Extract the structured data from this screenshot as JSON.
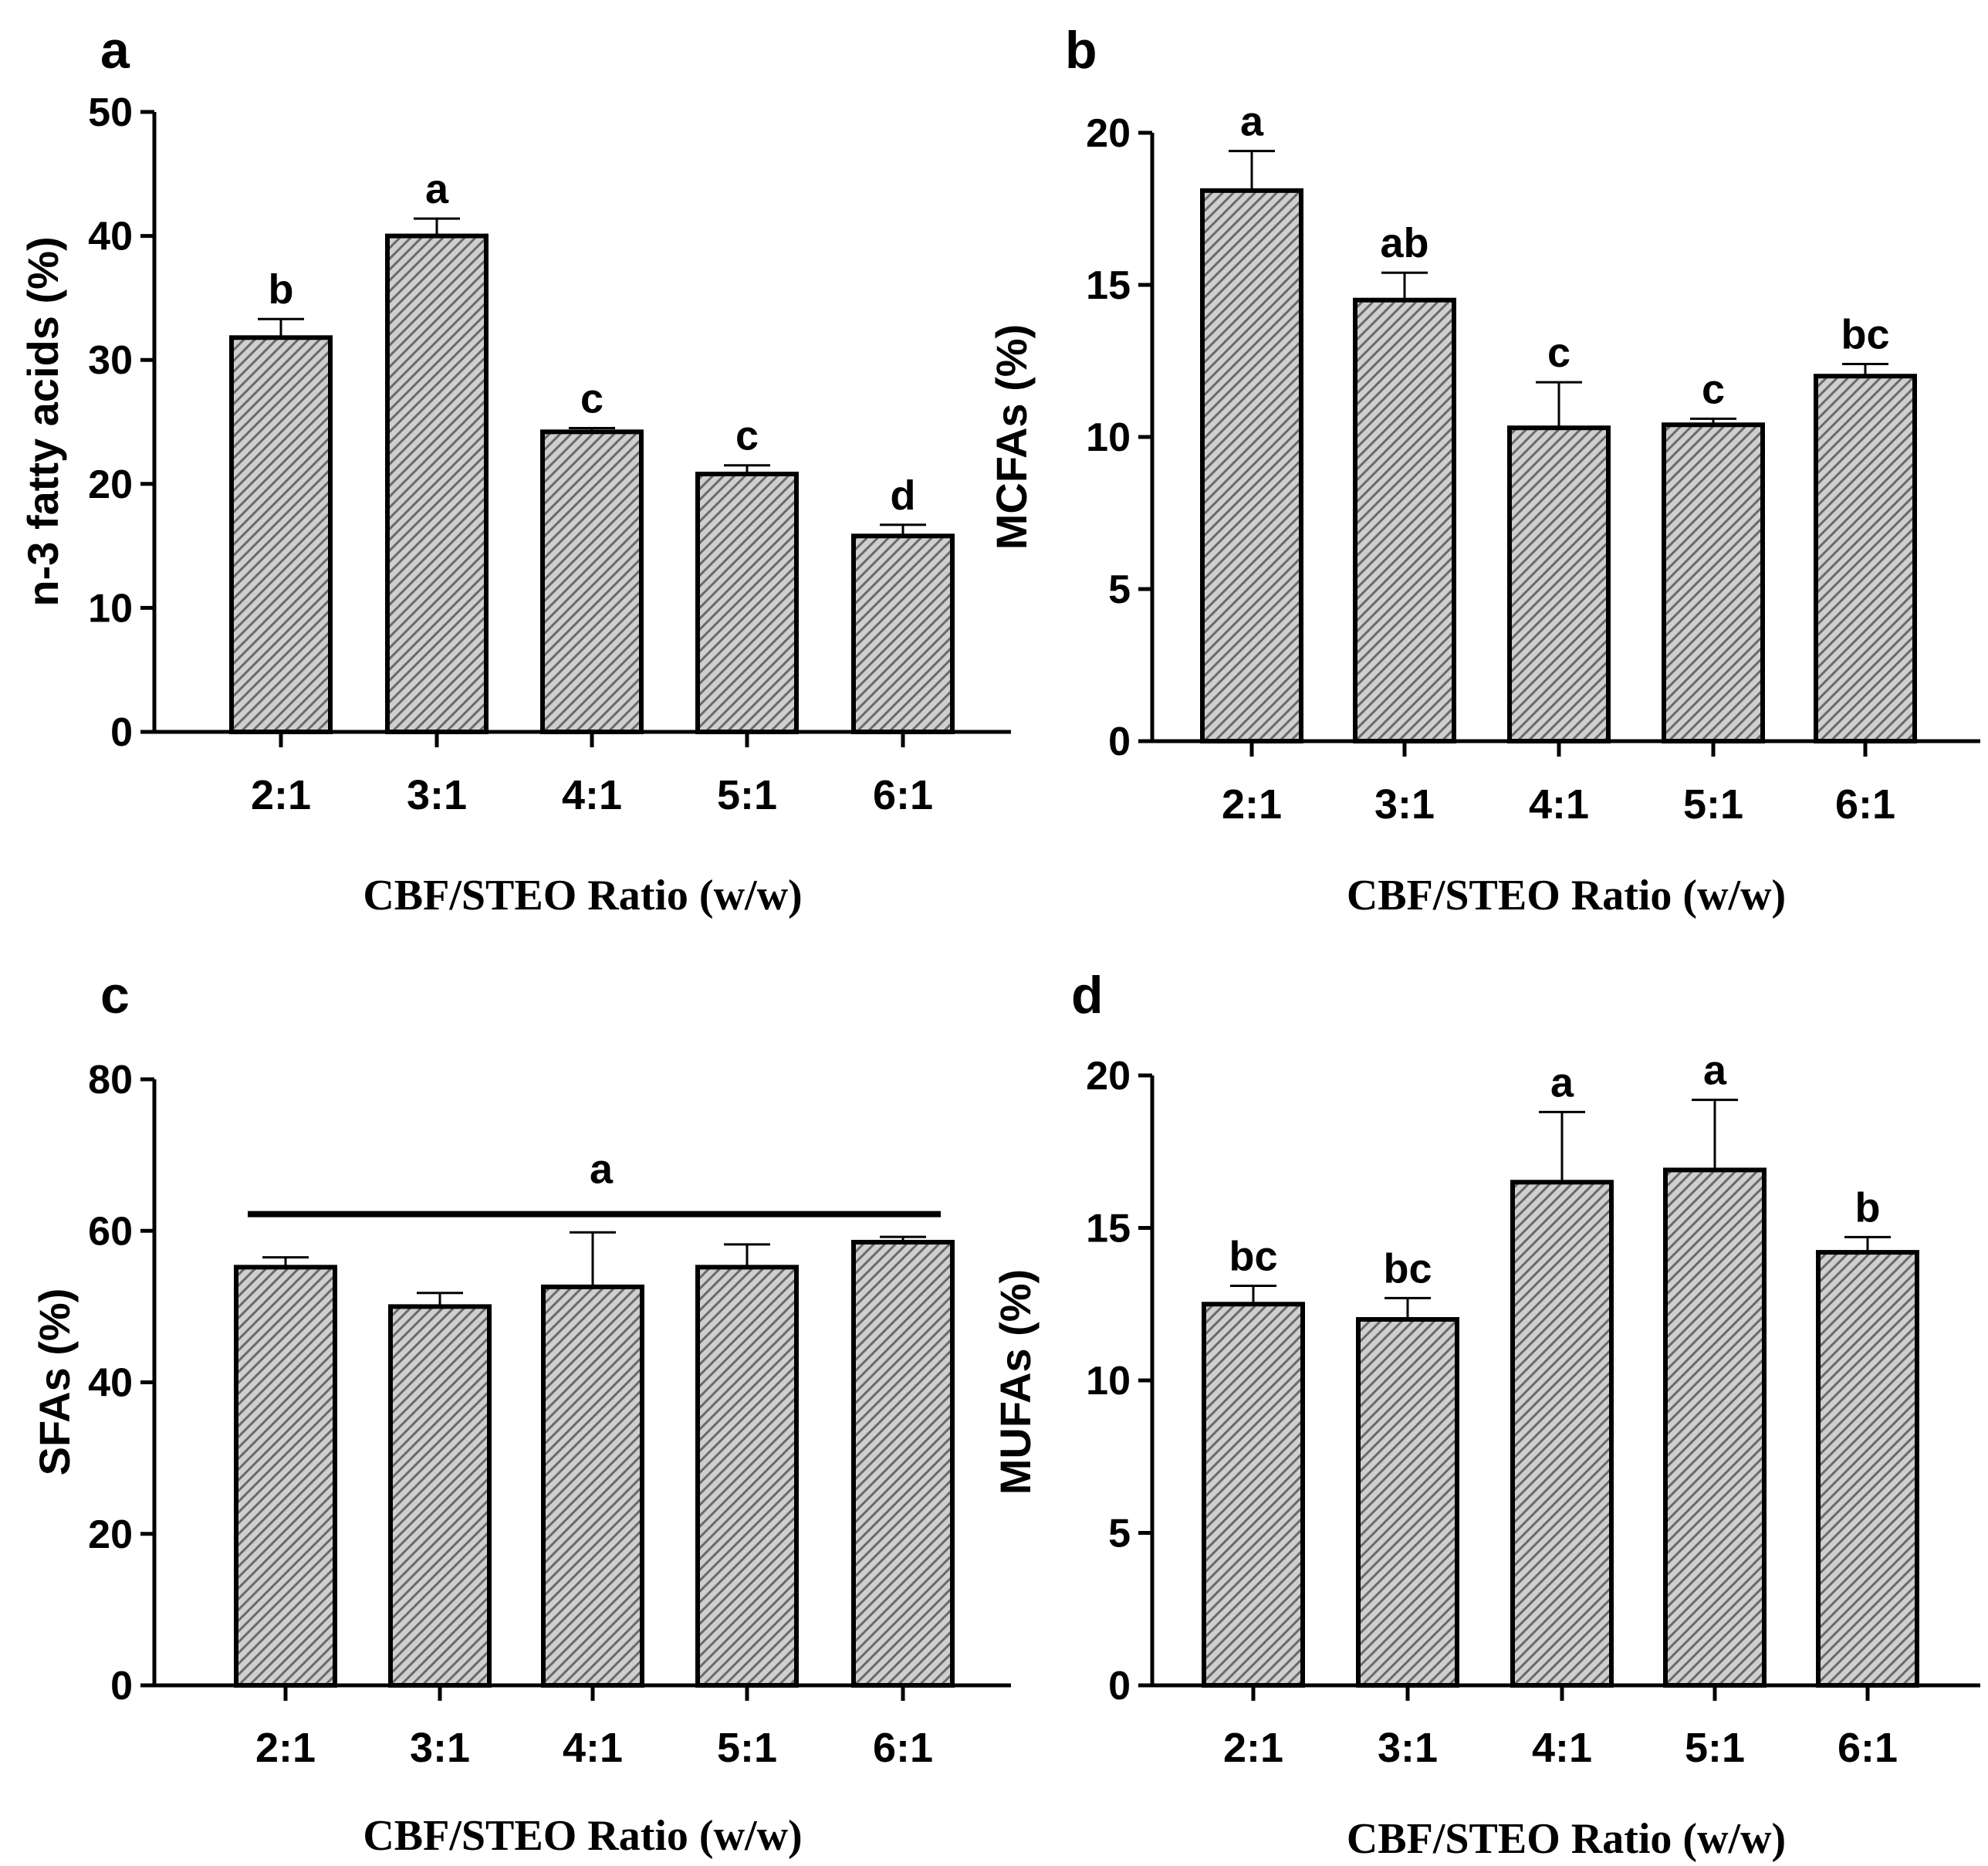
{
  "colors": {
    "bar_fill": "#cfcfcf",
    "hatch": "#6a6a6a",
    "ink": "#000000",
    "background": "#ffffff"
  },
  "chart_data": [
    {
      "panel": "a",
      "type": "bar",
      "categories": [
        "2:1",
        "3:1",
        "4:1",
        "5:1",
        "6:1"
      ],
      "values": [
        31.8,
        40.0,
        24.2,
        20.8,
        15.8
      ],
      "errors": [
        1.5,
        1.4,
        0.3,
        0.7,
        0.9
      ],
      "significance": [
        "b",
        "a",
        "c",
        "c",
        "d"
      ],
      "ylabel": "n-3 fatty acids (%)",
      "xlabel": "CBF/STEO Ratio (w/w)",
      "ylim": [
        0,
        50
      ],
      "yticks": [
        0,
        10,
        20,
        30,
        40,
        50
      ]
    },
    {
      "panel": "b",
      "type": "bar",
      "categories": [
        "2:1",
        "3:1",
        "4:1",
        "5:1",
        "6:1"
      ],
      "values": [
        18.1,
        14.5,
        10.3,
        10.4,
        12.0
      ],
      "errors": [
        1.3,
        0.9,
        1.5,
        0.2,
        0.4
      ],
      "significance": [
        "a",
        "ab",
        "c",
        "c",
        "bc"
      ],
      "ylabel": "MCFAs (%)",
      "xlabel": "CBF/STEO Ratio (w/w)",
      "ylim": [
        0,
        20
      ],
      "yticks": [
        0,
        5,
        10,
        15,
        20
      ]
    },
    {
      "panel": "c",
      "type": "bar",
      "categories": [
        "2:1",
        "3:1",
        "4:1",
        "5:1",
        "6:1"
      ],
      "values": [
        55.2,
        50.0,
        52.6,
        55.2,
        58.5
      ],
      "errors": [
        1.3,
        1.8,
        7.2,
        3.0,
        0.7
      ],
      "significance": [],
      "group_annotation": "a",
      "ylabel": "SFAs (%)",
      "xlabel": "CBF/STEO Ratio (w/w)",
      "ylim": [
        0,
        80
      ],
      "yticks": [
        0,
        20,
        40,
        60,
        80
      ]
    },
    {
      "panel": "d",
      "type": "bar",
      "categories": [
        "2:1",
        "3:1",
        "4:1",
        "5:1",
        "6:1"
      ],
      "values": [
        12.5,
        12.0,
        16.5,
        16.9,
        14.2
      ],
      "errors": [
        0.6,
        0.7,
        2.3,
        2.3,
        0.5
      ],
      "significance": [
        "bc",
        "bc",
        "a",
        "a",
        "b"
      ],
      "ylabel": "MUFAs (%)",
      "xlabel": "CBF/STEO Ratio (w/w)",
      "ylim": [
        0,
        20
      ],
      "yticks": [
        0,
        5,
        10,
        15,
        20
      ]
    }
  ]
}
